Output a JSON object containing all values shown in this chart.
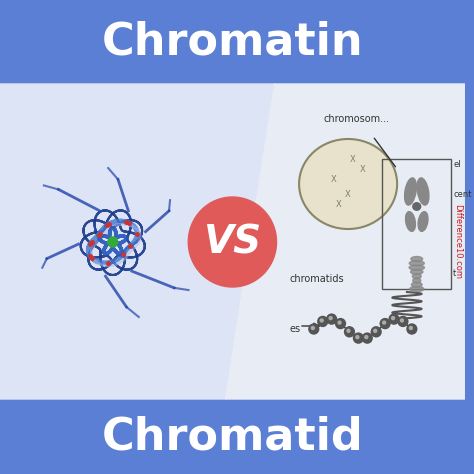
{
  "title_top": "Chromatin",
  "title_bottom": "Chromatid",
  "vs_text": "VS",
  "bg_color_blue": "#5b7fd4",
  "bg_color_white": "#f0f0f0",
  "vs_circle_color": "#e05a5a",
  "vs_text_color": "#ffffff",
  "title_text_color": "#ffffff",
  "title_fontsize": 32,
  "vs_fontsize": 28,
  "label_chromosomes": "chromosom...",
  "label_chromatids": "chromatids",
  "label_es": "es",
  "label_cent": "cent",
  "label_el": "el",
  "label_t": "t",
  "watermark": "Difference10.com",
  "watermark_color": "#cc0000"
}
